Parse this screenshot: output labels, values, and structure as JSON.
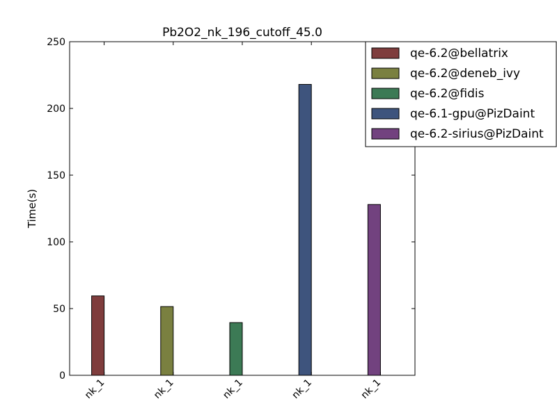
{
  "chart_data": {
    "type": "bar",
    "title": "Pb2O2_nk_196_cutoff_45.0",
    "xlabel": "",
    "ylabel": "Time(s)",
    "ylim": [
      0,
      250
    ],
    "yticks": [
      0,
      50,
      100,
      150,
      200,
      250
    ],
    "categories": [
      "nk_1",
      "nk_1",
      "nk_1",
      "nk_1",
      "nk_1"
    ],
    "grid": false,
    "legend_position": "top-right",
    "series": [
      {
        "name": "qe-6.2@bellatrix",
        "color": "#7f3d3d",
        "category_index": 0,
        "value": 59.5
      },
      {
        "name": "qe-6.2@deneb_ivy",
        "color": "#7a8040",
        "category_index": 1,
        "value": 51.5
      },
      {
        "name": "qe-6.2@fidis",
        "color": "#3c7a55",
        "category_index": 2,
        "value": 39.5
      },
      {
        "name": "qe-6.1-gpu@PizDaint",
        "color": "#3e547d",
        "category_index": 3,
        "value": 218
      },
      {
        "name": "qe-6.2-sirius@PizDaint",
        "color": "#72427f",
        "category_index": 4,
        "value": 128
      }
    ]
  }
}
